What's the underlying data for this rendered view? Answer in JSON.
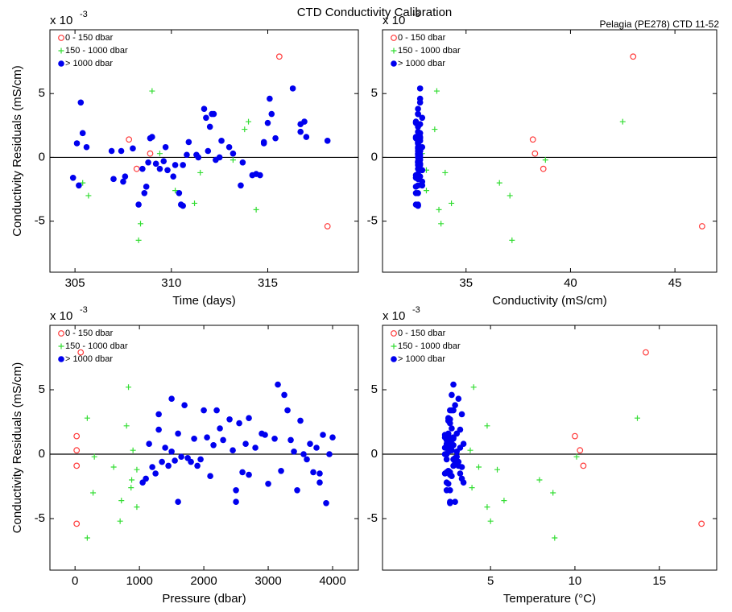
{
  "chart_data": [
    {
      "type": "scatter",
      "title": "CTD Conductivity Calibration",
      "xlabel": "Time (days)",
      "ylabel": "Conductivity Residuals (mS/cm)",
      "y_multiplier": "x 10",
      "y_exponent": "-3",
      "xlim": [
        303.7,
        319.7
      ],
      "xticks": [
        305,
        310,
        315
      ],
      "ylim": [
        -9,
        10
      ],
      "yticks": [
        -5,
        0,
        5
      ],
      "reference_line": 0,
      "legend": "upper left",
      "series": [
        {
          "name": "0 - 150 dbar",
          "color": "#ff3b3b",
          "marker": "circle-open",
          "x": [
            315.6,
            307.8,
            308.9,
            308.2,
            318.1
          ],
          "values": [
            7.9,
            1.4,
            0.3,
            -0.9,
            -5.4
          ]
        },
        {
          "name": "150 - 1000 dbar",
          "color": "#33dd33",
          "marker": "plus",
          "x": [
            309.0,
            314.0,
            313.8,
            309.4,
            313.2,
            309.8,
            311.5,
            305.4,
            310.2,
            305.7,
            311.2,
            314.4,
            308.4,
            308.3
          ],
          "values": [
            5.2,
            2.8,
            2.2,
            0.3,
            -0.2,
            -1.0,
            -1.2,
            -2.0,
            -2.6,
            -3.0,
            -3.6,
            -4.1,
            -5.2,
            -6.5
          ]
        },
        {
          "name": "> 1000 dbar",
          "color": "#0000ee",
          "marker": "circle",
          "x": [
            305.2,
            307.5,
            305.6,
            309.8,
            307.6,
            311.8,
            305.4,
            310.2,
            306.9,
            309.4,
            305.3,
            310.8,
            309.2,
            308.3,
            309.0,
            312.3,
            311.7,
            309.6,
            310.6,
            310.9,
            308.5,
            308.8,
            312.2,
            312.6,
            307.0,
            308.0,
            315.2,
            316.7,
            314.8,
            315.0,
            313.2,
            308.6,
            310.5,
            312.0,
            314.2,
            313.0,
            304.9,
            316.9,
            311.9,
            317.0,
            315.4,
            308.7,
            314.8,
            316.3,
            314.4,
            315.1,
            312.1,
            305.1,
            311.3,
            310.4,
            316.7,
            312.5,
            313.7,
            309.7,
            314.6,
            310.1,
            308.9,
            310.6,
            311.4,
            318.1,
            313.6,
            307.4
          ],
          "values": [
            -2.2,
            -1.9,
            0.8,
            -1.0,
            -1.5,
            3.1,
            1.9,
            -0.6,
            0.5,
            -0.9,
            4.3,
            0.2,
            -0.5,
            -3.7,
            1.6,
            -0.2,
            3.8,
            -0.3,
            -0.6,
            1.2,
            -0.9,
            -0.4,
            3.4,
            1.3,
            -1.7,
            0.7,
            3.4,
            2.0,
            1.1,
            2.7,
            0.3,
            -2.8,
            -3.7,
            2.4,
            -1.4,
            0.8,
            -1.6,
            2.8,
            0.5,
            1.6,
            1.5,
            -2.3,
            1.2,
            5.4,
            -1.3,
            4.6,
            3.4,
            1.1,
            0.2,
            -2.8,
            2.6,
            0.0,
            -0.4,
            0.8,
            -1.4,
            -1.5,
            1.5,
            -3.8,
            0.0,
            1.3,
            -2.2,
            0.5
          ]
        }
      ]
    },
    {
      "type": "scatter",
      "annotation": "Pelagia (PE278) CTD 11-52",
      "xlabel": "Conductivity (mS/cm)",
      "y_multiplier": "x 10",
      "y_exponent": "-3",
      "xlim": [
        31,
        47
      ],
      "xticks": [
        35,
        40,
        45
      ],
      "ylim": [
        -9,
        10
      ],
      "yticks": [
        -5,
        0,
        5
      ],
      "reference_line": 0,
      "legend": "upper left",
      "series": [
        {
          "name": "0 - 150 dbar",
          "color": "#ff3b3b",
          "marker": "circle-open",
          "x": [
            43.0,
            38.2,
            38.3,
            38.7,
            46.3
          ],
          "values": [
            7.9,
            1.4,
            0.3,
            -0.9,
            -5.4
          ]
        },
        {
          "name": "150 - 1000 dbar",
          "color": "#33dd33",
          "marker": "plus",
          "x": [
            33.6,
            42.5,
            33.5,
            32.9,
            38.8,
            33.1,
            34.0,
            36.6,
            33.1,
            37.1,
            34.3,
            33.7,
            33.8,
            37.2
          ],
          "values": [
            5.2,
            2.8,
            2.2,
            0.3,
            -0.2,
            -1.0,
            -1.2,
            -2.0,
            -2.6,
            -3.0,
            -3.6,
            -4.1,
            -5.2,
            -6.5
          ]
        },
        {
          "name": "> 1000 dbar",
          "color": "#0000ee",
          "marker": "circle",
          "x": [
            32.9,
            32.9,
            32.9,
            32.9,
            32.8,
            32.9,
            32.8,
            32.8,
            32.8,
            32.8,
            32.8,
            32.8,
            32.8,
            32.7,
            32.8,
            32.8,
            32.7,
            32.7,
            32.7,
            32.7,
            32.7,
            32.7,
            32.7,
            32.7,
            32.7,
            32.7,
            32.7,
            32.7,
            32.7,
            32.6,
            32.7,
            32.6,
            32.6,
            32.7,
            32.6,
            32.7,
            32.6,
            32.6,
            32.7,
            32.6,
            32.6,
            32.6,
            32.7,
            32.8,
            32.7,
            32.8,
            32.7,
            32.7,
            32.7,
            32.7,
            32.8,
            32.7,
            32.7,
            32.8,
            32.7,
            32.7,
            32.8,
            32.7,
            32.8,
            32.8,
            32.7,
            32.8
          ],
          "values": [
            -2.2,
            -1.9,
            0.8,
            -1.0,
            -1.5,
            3.1,
            1.9,
            -0.6,
            0.5,
            -0.9,
            4.3,
            0.2,
            -0.5,
            -3.7,
            1.6,
            -0.2,
            3.8,
            -0.3,
            -0.6,
            1.2,
            -0.9,
            -0.4,
            3.4,
            1.3,
            -1.7,
            0.7,
            3.4,
            2.0,
            1.1,
            2.7,
            0.3,
            -2.8,
            -3.7,
            2.4,
            -1.4,
            0.8,
            -1.6,
            2.8,
            0.5,
            1.6,
            1.5,
            -2.3,
            1.2,
            5.4,
            -1.3,
            4.6,
            3.4,
            1.1,
            0.2,
            -2.8,
            2.6,
            0.0,
            -0.4,
            0.8,
            -1.4,
            -1.5,
            1.5,
            -3.8,
            0.0,
            1.3,
            -2.2,
            0.5
          ]
        }
      ]
    },
    {
      "type": "scatter",
      "xlabel": "Pressure (dbar)",
      "ylabel": "Conductivity Residuals (mS/cm)",
      "y_multiplier": "x 10",
      "y_exponent": "-3",
      "xlim": [
        -390,
        4400
      ],
      "xticks": [
        0,
        1000,
        2000,
        3000,
        4000
      ],
      "ylim": [
        -9,
        10
      ],
      "yticks": [
        -5,
        0,
        5
      ],
      "reference_line": 0,
      "legend": "upper left",
      "series": [
        {
          "name": "0 - 150 dbar",
          "color": "#ff3b3b",
          "marker": "circle-open",
          "x": [
            88,
            25,
            25,
            25,
            25
          ],
          "values": [
            7.9,
            1.4,
            0.3,
            -0.9,
            -5.4
          ]
        },
        {
          "name": "150 - 1000 dbar",
          "color": "#33dd33",
          "marker": "plus",
          "x": [
            830,
            190,
            800,
            900,
            300,
            600,
            960,
            880,
            870,
            280,
            720,
            960,
            700,
            190
          ],
          "values": [
            5.2,
            2.8,
            2.2,
            0.3,
            -0.2,
            -1.0,
            -1.2,
            -2.0,
            -2.6,
            -3.0,
            -3.6,
            -4.1,
            -5.2,
            -6.5
          ]
        },
        {
          "name": "> 1000 dbar",
          "color": "#0000ee",
          "marker": "circle",
          "x": [
            1050,
            1100,
            1150,
            1200,
            1250,
            1300,
            1300,
            1350,
            1400,
            1450,
            1500,
            1500,
            1550,
            1600,
            1600,
            1650,
            1700,
            1750,
            1800,
            1850,
            1900,
            1950,
            2000,
            2050,
            2100,
            2150,
            2200,
            2250,
            2300,
            2400,
            2450,
            2500,
            2500,
            2550,
            2600,
            2650,
            2700,
            2700,
            2800,
            2900,
            2950,
            3000,
            3100,
            3150,
            3200,
            3250,
            3300,
            3350,
            3400,
            3450,
            3500,
            3550,
            3600,
            3650,
            3700,
            3800,
            3850,
            3900,
            3950,
            4000,
            3800,
            3750
          ],
          "values": [
            -2.2,
            -1.9,
            0.8,
            -1.0,
            -1.5,
            3.1,
            1.9,
            -0.6,
            0.5,
            -0.9,
            4.3,
            0.2,
            -0.5,
            -3.7,
            1.6,
            -0.2,
            3.8,
            -0.3,
            -0.6,
            1.2,
            -0.9,
            -0.4,
            3.4,
            1.3,
            -1.7,
            0.7,
            3.4,
            2.0,
            1.1,
            2.7,
            0.3,
            -2.8,
            -3.7,
            2.4,
            -1.4,
            0.8,
            -1.6,
            2.8,
            0.5,
            1.6,
            1.5,
            -2.3,
            1.2,
            5.4,
            -1.3,
            4.6,
            3.4,
            1.1,
            0.2,
            -2.8,
            2.6,
            0.0,
            -0.4,
            0.8,
            -1.4,
            -1.5,
            1.5,
            -3.8,
            0.0,
            1.3,
            -2.2,
            0.5
          ]
        }
      ]
    },
    {
      "type": "scatter",
      "xlabel": "Temperature (°C)",
      "y_multiplier": "x 10",
      "y_exponent": "-3",
      "xlim": [
        -1.4,
        18.4
      ],
      "xticks": [
        5,
        10,
        15
      ],
      "ylim": [
        -9,
        10
      ],
      "yticks": [
        -5,
        0,
        5
      ],
      "reference_line": 0,
      "legend": "upper left",
      "series": [
        {
          "name": "0 - 150 dbar",
          "color": "#ff3b3b",
          "marker": "circle-open",
          "x": [
            14.2,
            10.0,
            10.3,
            10.5,
            17.5
          ],
          "values": [
            7.9,
            1.4,
            0.3,
            -0.9,
            -5.4
          ]
        },
        {
          "name": "150 - 1000 dbar",
          "color": "#33dd33",
          "marker": "plus",
          "x": [
            4.0,
            13.7,
            4.8,
            3.8,
            10.1,
            4.3,
            5.4,
            7.9,
            3.9,
            8.7,
            5.8,
            4.8,
            5.0,
            8.8
          ],
          "values": [
            5.2,
            2.8,
            2.2,
            0.3,
            -0.2,
            -1.0,
            -1.2,
            -2.0,
            -2.6,
            -3.0,
            -3.6,
            -4.1,
            -5.2,
            -6.5
          ]
        },
        {
          "name": "> 1000 dbar",
          "color": "#0000ee",
          "marker": "circle",
          "x": [
            3.4,
            3.3,
            3.4,
            3.3,
            3.2,
            3.3,
            3.2,
            3.1,
            3.2,
            3.1,
            3.1,
            3.0,
            3.0,
            2.9,
            3.0,
            3.0,
            2.9,
            2.9,
            2.9,
            2.8,
            2.8,
            2.8,
            2.8,
            2.8,
            2.7,
            2.8,
            2.7,
            2.7,
            2.7,
            2.6,
            2.7,
            2.6,
            2.6,
            2.6,
            2.6,
            2.6,
            2.6,
            2.5,
            2.6,
            2.5,
            2.5,
            2.5,
            2.5,
            2.8,
            2.5,
            2.7,
            2.6,
            2.4,
            2.5,
            2.4,
            2.5,
            2.4,
            2.4,
            2.4,
            2.4,
            2.3,
            2.3,
            2.6,
            2.3,
            2.3,
            2.4,
            2.3
          ],
          "values": [
            -2.2,
            -1.9,
            0.8,
            -1.0,
            -1.5,
            3.1,
            1.9,
            -0.6,
            0.5,
            -0.9,
            4.3,
            0.2,
            -0.5,
            -3.7,
            1.6,
            -0.2,
            3.8,
            -0.3,
            -0.6,
            1.2,
            -0.9,
            -0.4,
            3.4,
            1.3,
            -1.7,
            0.7,
            3.4,
            2.0,
            1.1,
            2.7,
            0.3,
            -2.8,
            -3.7,
            2.4,
            -1.4,
            0.8,
            -1.6,
            2.8,
            0.5,
            1.6,
            1.5,
            -2.3,
            1.2,
            5.4,
            -1.3,
            4.6,
            3.4,
            1.1,
            0.2,
            -2.8,
            2.6,
            0.0,
            -0.4,
            0.8,
            -1.4,
            -1.5,
            1.5,
            -3.8,
            0.0,
            1.3,
            -2.2,
            0.5
          ]
        }
      ]
    }
  ]
}
